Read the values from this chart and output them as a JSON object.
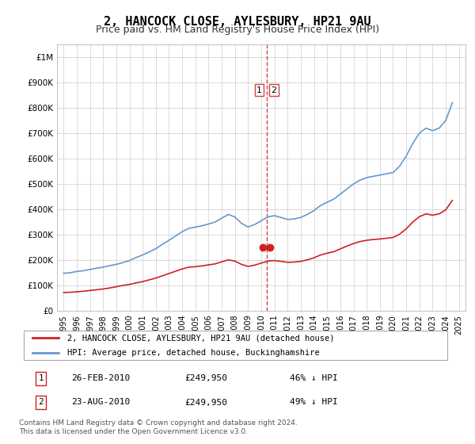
{
  "title": "2, HANCOCK CLOSE, AYLESBURY, HP21 9AU",
  "subtitle": "Price paid vs. HM Land Registry's House Price Index (HPI)",
  "title_fontsize": 11,
  "subtitle_fontsize": 9,
  "hpi_color": "#6699cc",
  "property_color": "#cc2222",
  "marker_color": "#cc2222",
  "dashed_line_color": "#cc4444",
  "background_color": "#ffffff",
  "grid_color": "#cccccc",
  "ylim": [
    0,
    1050000
  ],
  "yticks": [
    0,
    100000,
    200000,
    300000,
    400000,
    500000,
    600000,
    700000,
    800000,
    900000,
    1000000
  ],
  "ytick_labels": [
    "£0",
    "£100K",
    "£200K",
    "£300K",
    "£400K",
    "£500K",
    "£600K",
    "£700K",
    "£800K",
    "£900K",
    "£1M"
  ],
  "sale1_year": 2010.15,
  "sale1_price": 249950,
  "sale2_year": 2010.65,
  "sale2_price": 249950,
  "sale1_label": "1",
  "sale2_label": "2",
  "legend_property": "2, HANCOCK CLOSE, AYLESBURY, HP21 9AU (detached house)",
  "legend_hpi": "HPI: Average price, detached house, Buckinghamshire",
  "table_data": [
    [
      "1",
      "26-FEB-2010",
      "£249,950",
      "46% ↓ HPI"
    ],
    [
      "2",
      "23-AUG-2010",
      "£249,950",
      "49% ↓ HPI"
    ]
  ],
  "footer": "Contains HM Land Registry data © Crown copyright and database right 2024.\nThis data is licensed under the Open Government Licence v3.0.",
  "hpi_years": [
    1995,
    1995.5,
    1996,
    1996.5,
    1997,
    1997.5,
    1998,
    1998.5,
    1999,
    1999.5,
    2000,
    2000.5,
    2001,
    2001.5,
    2002,
    2002.5,
    2003,
    2003.5,
    2004,
    2004.5,
    2005,
    2005.5,
    2006,
    2006.5,
    2007,
    2007.5,
    2008,
    2008.5,
    2009,
    2009.5,
    2010,
    2010.5,
    2011,
    2011.5,
    2012,
    2012.5,
    2013,
    2013.5,
    2014,
    2014.5,
    2015,
    2015.5,
    2016,
    2016.5,
    2017,
    2017.5,
    2018,
    2018.5,
    2019,
    2019.5,
    2020,
    2020.5,
    2021,
    2021.5,
    2022,
    2022.5,
    2023,
    2023.5,
    2024,
    2024.5
  ],
  "hpi_values": [
    148000,
    150000,
    155000,
    158000,
    163000,
    168000,
    172000,
    178000,
    183000,
    190000,
    198000,
    210000,
    220000,
    232000,
    245000,
    262000,
    278000,
    295000,
    312000,
    325000,
    330000,
    335000,
    342000,
    350000,
    365000,
    380000,
    370000,
    345000,
    330000,
    340000,
    355000,
    370000,
    375000,
    368000,
    360000,
    362000,
    368000,
    380000,
    395000,
    415000,
    428000,
    440000,
    460000,
    480000,
    500000,
    515000,
    525000,
    530000,
    535000,
    540000,
    545000,
    570000,
    610000,
    660000,
    700000,
    720000,
    710000,
    720000,
    750000,
    820000
  ],
  "prop_years": [
    1995,
    1995.5,
    1996,
    1996.5,
    1997,
    1997.5,
    1998,
    1998.5,
    1999,
    1999.5,
    2000,
    2000.5,
    2001,
    2001.5,
    2002,
    2002.5,
    2003,
    2003.5,
    2004,
    2004.5,
    2005,
    2005.5,
    2006,
    2006.5,
    2007,
    2007.5,
    2008,
    2008.5,
    2009,
    2009.5,
    2010,
    2010.5,
    2011,
    2011.5,
    2012,
    2012.5,
    2013,
    2013.5,
    2014,
    2014.5,
    2015,
    2015.5,
    2016,
    2016.5,
    2017,
    2017.5,
    2018,
    2018.5,
    2019,
    2019.5,
    2020,
    2020.5,
    2021,
    2021.5,
    2022,
    2022.5,
    2023,
    2023.5,
    2024,
    2024.5
  ],
  "prop_values": [
    72000,
    73000,
    75000,
    77000,
    80000,
    83000,
    86000,
    90000,
    95000,
    100000,
    104000,
    110000,
    115000,
    122000,
    129000,
    138000,
    147000,
    156000,
    165000,
    172000,
    174000,
    177000,
    181000,
    185000,
    193000,
    201000,
    196000,
    183000,
    175000,
    180000,
    188000,
    196000,
    198000,
    195000,
    191000,
    192000,
    195000,
    201000,
    209000,
    220000,
    227000,
    233000,
    244000,
    255000,
    265000,
    273000,
    278000,
    281000,
    283000,
    286000,
    289000,
    302000,
    323000,
    350000,
    371000,
    382000,
    377000,
    382000,
    398000,
    435000
  ]
}
